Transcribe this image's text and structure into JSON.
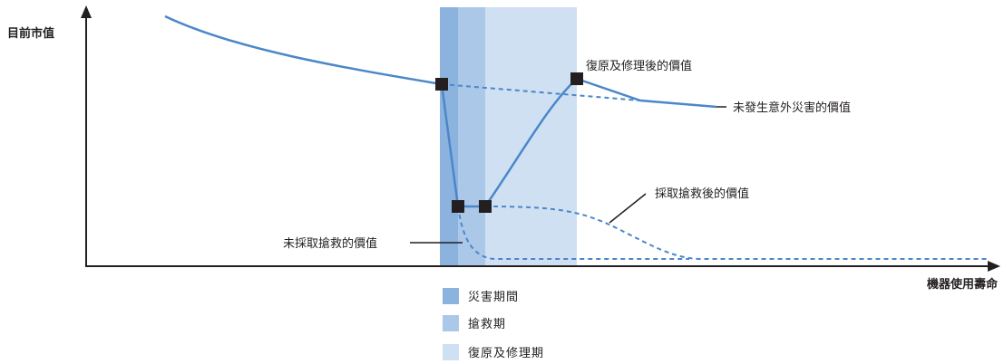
{
  "y_axis_label": "目前市值",
  "x_axis_label": "機器使用壽命",
  "annotations": {
    "restored": "復原及修理後的價值",
    "no_disaster": "未發生意外災害的價值",
    "rescued": "採取搶救後的價值",
    "not_rescued": "未採取搶救的價值"
  },
  "legend": [
    {
      "label": "災害期間",
      "color": "#8cb2de"
    },
    {
      "label": "搶救期",
      "color": "#abc8e9"
    },
    {
      "label": "復原及修理期",
      "color": "#cfe0f3"
    }
  ],
  "colors": {
    "line": "#4b87c9",
    "marker": "#231f20",
    "axis": "#231f20"
  }
}
